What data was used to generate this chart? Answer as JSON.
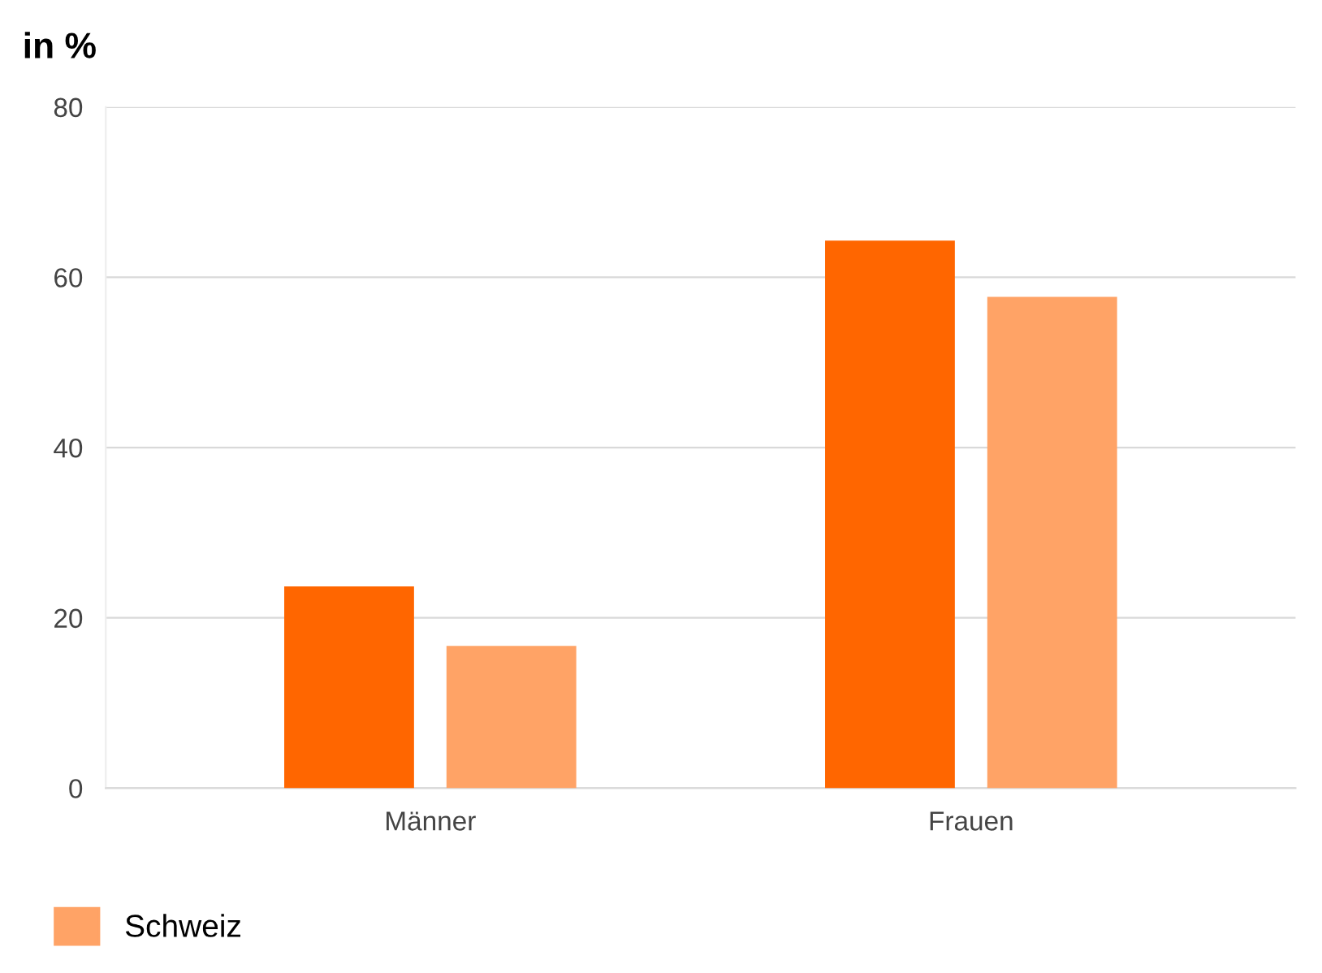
{
  "chart_data": {
    "type": "bar",
    "title": "in %",
    "categories": [
      "Männer",
      "Frauen"
    ],
    "series": [
      {
        "color": "#ff6600",
        "values": [
          23.7,
          64.3
        ]
      },
      {
        "name": "Schweiz",
        "color": "#ffa366",
        "values": [
          16.7,
          57.7
        ]
      }
    ],
    "ylim": [
      0,
      80
    ],
    "yticks": [
      0,
      20,
      40,
      60,
      80
    ],
    "grid": "y",
    "legend": "bottom left"
  }
}
